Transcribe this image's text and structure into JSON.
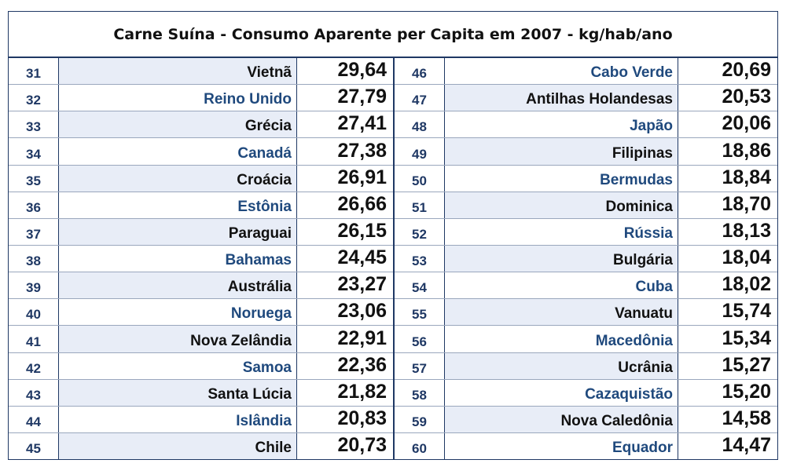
{
  "title": "Carne Suína - Consumo Aparente per Capita em 2007 - kg/hab/ano",
  "left_rows": [
    {
      "rank": "31",
      "country": "Vietnã",
      "value": "29,64"
    },
    {
      "rank": "32",
      "country": "Reino Unido",
      "value": "27,79"
    },
    {
      "rank": "33",
      "country": "Grécia",
      "value": "27,41"
    },
    {
      "rank": "34",
      "country": "Canadá",
      "value": "27,38"
    },
    {
      "rank": "35",
      "country": "Croácia",
      "value": "26,91"
    },
    {
      "rank": "36",
      "country": "Estônia",
      "value": "26,66"
    },
    {
      "rank": "37",
      "country": "Paraguai",
      "value": "26,15"
    },
    {
      "rank": "38",
      "country": "Bahamas",
      "value": "24,45"
    },
    {
      "rank": "39",
      "country": "Austrália",
      "value": "23,27"
    },
    {
      "rank": "40",
      "country": "Noruega",
      "value": "23,06"
    },
    {
      "rank": "41",
      "country": "Nova Zelândia",
      "value": "22,91"
    },
    {
      "rank": "42",
      "country": "Samoa",
      "value": "22,36"
    },
    {
      "rank": "43",
      "country": "Santa Lúcia",
      "value": "21,82"
    },
    {
      "rank": "44",
      "country": "Islândia",
      "value": "20,83"
    },
    {
      "rank": "45",
      "country": "Chile",
      "value": "20,73"
    }
  ],
  "right_rows": [
    {
      "rank": "46",
      "country": "Cabo Verde",
      "value": "20,69"
    },
    {
      "rank": "47",
      "country": "Antilhas Holandesas",
      "value": "20,53"
    },
    {
      "rank": "48",
      "country": "Japão",
      "value": "20,06"
    },
    {
      "rank": "49",
      "country": "Filipinas",
      "value": "18,86"
    },
    {
      "rank": "50",
      "country": "Bermudas",
      "value": "18,84"
    },
    {
      "rank": "51",
      "country": "Dominica",
      "value": "18,70"
    },
    {
      "rank": "52",
      "country": "Rússia",
      "value": "18,13"
    },
    {
      "rank": "53",
      "country": "Bulgária",
      "value": "18,04"
    },
    {
      "rank": "54",
      "country": "Cuba",
      "value": "18,02"
    },
    {
      "rank": "55",
      "country": "Vanuatu",
      "value": "15,74"
    },
    {
      "rank": "56",
      "country": "Macedônia",
      "value": "15,34"
    },
    {
      "rank": "57",
      "country": "Ucrânia",
      "value": "15,27"
    },
    {
      "rank": "58",
      "country": "Cazaquistão",
      "value": "15,20"
    },
    {
      "rank": "59",
      "country": "Nova Caledônia",
      "value": "14,58"
    },
    {
      "rank": "60",
      "country": "Equador",
      "value": "14,47"
    }
  ]
}
